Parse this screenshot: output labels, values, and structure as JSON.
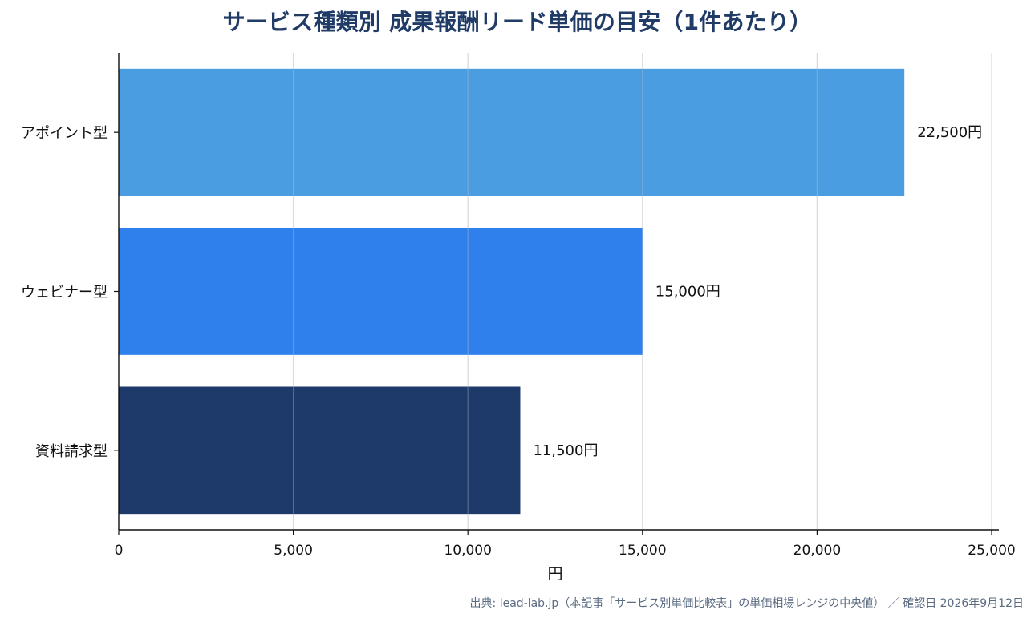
{
  "chart_data": {
    "type": "bar",
    "orientation": "horizontal",
    "title": "サービス種類別 成果報酬リード単価の目安（1件あたり）",
    "categories": [
      "アポイント型",
      "ウェビナー型",
      "資料請求型"
    ],
    "values": [
      22500,
      15000,
      11500
    ],
    "value_labels": [
      "22,500円",
      "15,000円",
      "11,500円"
    ],
    "colors": [
      "#4a9de0",
      "#2f80ed",
      "#1e3a6b"
    ],
    "xlabel": "円",
    "ylabel": "",
    "xlim": [
      0,
      25000
    ],
    "xticks": [
      0,
      5000,
      10000,
      15000,
      20000,
      25000
    ],
    "xtick_labels": [
      "0",
      "5,000",
      "10,000",
      "15,000",
      "20,000",
      "25,000"
    ],
    "grid": "vertical",
    "legend": "none"
  },
  "source_note": "出典: lead-lab.jp（本記事「サービス別単価比較表」の単価相場レンジの中央値） ／ 確認日 2026年9月12日"
}
